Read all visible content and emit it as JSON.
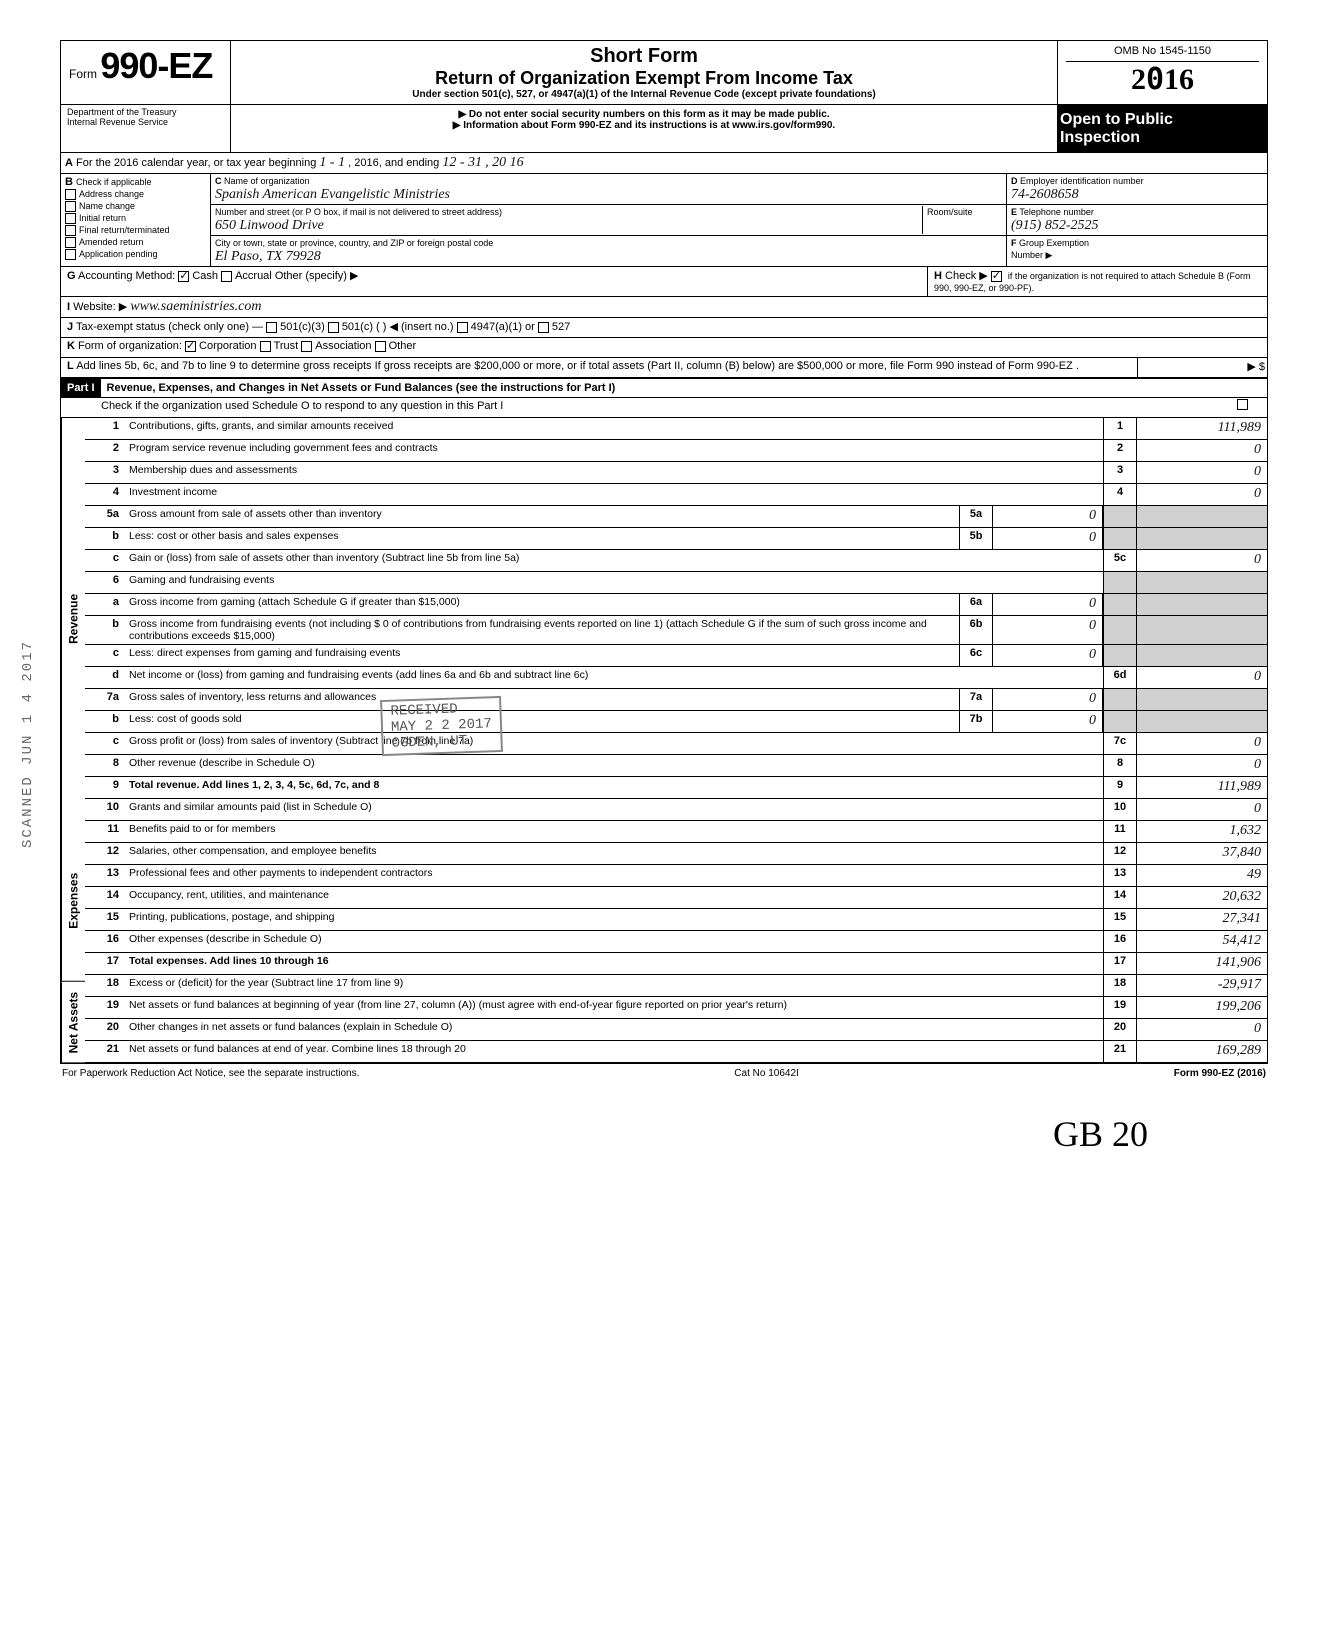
{
  "header": {
    "form_label": "Form",
    "form_number": "990-EZ",
    "title1": "Short Form",
    "title2": "Return of Organization Exempt From Income Tax",
    "under": "Under section 501(c), 527, or 4947(a)(1) of the Internal Revenue Code (except private foundations)",
    "warn": "Do not enter social security numbers on this form as it may be made public.",
    "info": "Information about Form 990-EZ and its instructions is at www.irs.gov/form990.",
    "dept": "Department of the Treasury\nInternal Revenue Service",
    "omb": "OMB No 1545-1150",
    "year": "2016",
    "open1": "Open to Public",
    "open2": "Inspection"
  },
  "A": {
    "text": "For the 2016 calendar year, or tax year beginning",
    "begin": "1 - 1",
    "mid": ", 2016, and ending",
    "end": "12 - 31",
    "yr": ", 20 16"
  },
  "B": {
    "title": "Check if applicable",
    "opts": [
      "Address change",
      "Name change",
      "Initial return",
      "Final return/terminated",
      "Amended return",
      "Application pending"
    ]
  },
  "C": {
    "name_lbl": "Name of organization",
    "name": "Spanish American Evangelistic Ministries",
    "addr_lbl": "Number and street (or P O box, if mail is not delivered to street address)",
    "addr": "650 Linwood Drive",
    "room_lbl": "Room/suite",
    "city_lbl": "City or town, state or province, country, and ZIP or foreign postal code",
    "city": "El Paso, TX 79928"
  },
  "D": {
    "lbl": "Employer identification number",
    "val": "74-2608658"
  },
  "E": {
    "lbl": "Telephone number",
    "val": "(915) 852-2525"
  },
  "F": {
    "lbl": "Group Exemption",
    "lbl2": "Number ▶",
    "val": ""
  },
  "G": {
    "lbl": "Accounting Method:",
    "opts": [
      "Cash",
      "Accrual",
      "Other (specify) ▶"
    ],
    "cash_checked": true
  },
  "H": {
    "txt": "Check ▶",
    "txt2": "if the organization is not required to attach Schedule B (Form 990, 990-EZ, or 990-PF).",
    "checked": true
  },
  "I": {
    "lbl": "Website: ▶",
    "val": "www.saeministries.com"
  },
  "J": {
    "lbl": "Tax-exempt status (check only one) —",
    "opts": [
      "501(c)(3)",
      "501(c) (    ) ◀ (insert no.)",
      "4947(a)(1) or",
      "527"
    ]
  },
  "K": {
    "lbl": "Form of organization:",
    "opts": [
      "Corporation",
      "Trust",
      "Association",
      "Other"
    ],
    "corp_checked": true
  },
  "L": {
    "txt": "Add lines 5b, 6c, and 7b to line 9 to determine gross receipts  If gross receipts are $200,000 or more, or if total assets (Part II, column (B) below) are $500,000 or more, file Form 990 instead of Form 990-EZ .",
    "amt": "$"
  },
  "part1": {
    "label": "Part I",
    "title": "Revenue, Expenses, and Changes in Net Assets or Fund Balances (see the instructions for Part I)",
    "check": "Check if the organization used Schedule O to respond to any question in this Part I"
  },
  "sections": {
    "revenue": "Revenue",
    "expenses": "Expenses",
    "netassets": "Net Assets"
  },
  "lines": {
    "1": {
      "n": "1",
      "t": "Contributions, gifts, grants, and similar amounts received",
      "v": "111,989"
    },
    "2": {
      "n": "2",
      "t": "Program service revenue including government fees and contracts",
      "v": "0"
    },
    "3": {
      "n": "3",
      "t": "Membership dues and assessments",
      "v": "0"
    },
    "4": {
      "n": "4",
      "t": "Investment income",
      "v": "0"
    },
    "5a": {
      "n": "5a",
      "t": "Gross amount from sale of assets other than inventory",
      "mv": "0"
    },
    "5b": {
      "n": "b",
      "t": "Less: cost or other basis and sales expenses",
      "mn": "5b",
      "mv": "0"
    },
    "5c": {
      "n": "c",
      "t": "Gain or (loss) from sale of assets other than inventory (Subtract line 5b from line 5a)",
      "bn": "5c",
      "v": "0"
    },
    "6": {
      "n": "6",
      "t": "Gaming and fundraising events"
    },
    "6a": {
      "n": "a",
      "t": "Gross income from gaming (attach Schedule G if greater than $15,000)",
      "mn": "6a",
      "mv": "0"
    },
    "6b": {
      "n": "b",
      "t": "Gross income from fundraising events (not including  $        0        of contributions from fundraising events reported on line 1) (attach Schedule G if the sum of such gross income and contributions exceeds $15,000)",
      "mn": "6b",
      "mv": "0"
    },
    "6c": {
      "n": "c",
      "t": "Less: direct expenses from gaming and fundraising events",
      "mn": "6c",
      "mv": "0"
    },
    "6d": {
      "n": "d",
      "t": "Net income or (loss) from gaming and fundraising events (add lines 6a and 6b and subtract line 6c)",
      "bn": "6d",
      "v": "0"
    },
    "7a": {
      "n": "7a",
      "t": "Gross sales of inventory, less returns and allowances",
      "mn": "7a",
      "mv": "0"
    },
    "7b": {
      "n": "b",
      "t": "Less: cost of goods sold",
      "mn": "7b",
      "mv": "0"
    },
    "7c": {
      "n": "c",
      "t": "Gross profit or (loss) from sales of inventory (Subtract line 7b from line 7a)",
      "bn": "7c",
      "v": "0"
    },
    "8": {
      "n": "8",
      "t": "Other revenue (describe in Schedule O)",
      "bn": "8",
      "v": "0"
    },
    "9": {
      "n": "9",
      "t": "Total revenue. Add lines 1, 2, 3, 4, 5c, 6d, 7c, and 8",
      "bn": "9",
      "v": "111,989",
      "bold": true
    },
    "10": {
      "n": "10",
      "t": "Grants and similar amounts paid (list in Schedule O)",
      "bn": "10",
      "v": "0"
    },
    "11": {
      "n": "11",
      "t": "Benefits paid to or for members",
      "bn": "11",
      "v": "1,632"
    },
    "12": {
      "n": "12",
      "t": "Salaries, other compensation, and employee benefits",
      "bn": "12",
      "v": "37,840"
    },
    "13": {
      "n": "13",
      "t": "Professional fees and other payments to independent contractors",
      "bn": "13",
      "v": "49"
    },
    "14": {
      "n": "14",
      "t": "Occupancy, rent, utilities, and maintenance",
      "bn": "14",
      "v": "20,632"
    },
    "15": {
      "n": "15",
      "t": "Printing, publications, postage, and shipping",
      "bn": "15",
      "v": "27,341"
    },
    "16": {
      "n": "16",
      "t": "Other expenses (describe in Schedule O)",
      "bn": "16",
      "v": "54,412"
    },
    "17": {
      "n": "17",
      "t": "Total expenses. Add lines 10 through 16",
      "bn": "17",
      "v": "141,906",
      "bold": true
    },
    "18": {
      "n": "18",
      "t": "Excess or (deficit) for the year (Subtract line 17 from line 9)",
      "bn": "18",
      "v": "-29,917"
    },
    "19": {
      "n": "19",
      "t": "Net assets or fund balances at beginning of year (from line 27, column (A)) (must agree with end-of-year figure reported on prior year's return)",
      "bn": "19",
      "v": "199,206"
    },
    "20": {
      "n": "20",
      "t": "Other changes in net assets or fund balances (explain in Schedule O)",
      "bn": "20",
      "v": "0"
    },
    "21": {
      "n": "21",
      "t": "Net assets or fund balances at end of year. Combine lines 18 through 20",
      "bn": "21",
      "v": "169,289"
    }
  },
  "stamp": {
    "received": "RECEIVED",
    "date": "MAY 2 2 2017",
    "place": "OGDEN, UT"
  },
  "footer": {
    "left": "For Paperwork Reduction Act Notice, see the separate instructions.",
    "mid": "Cat No 10642I",
    "right": "Form 990-EZ (2016)"
  },
  "signature": "GB   20",
  "scanned": "SCANNED JUN 1 4 2017"
}
